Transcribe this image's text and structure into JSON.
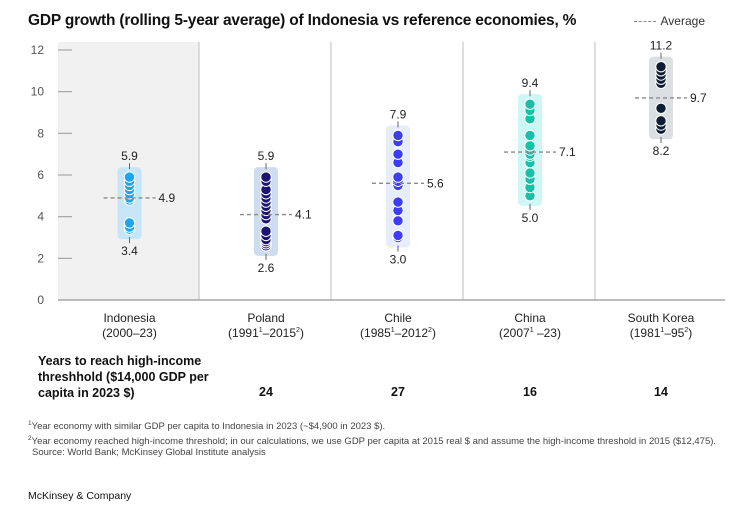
{
  "header": {
    "title": "GDP growth (rolling 5-year average) of Indonesia vs reference economies, %",
    "legend_label": "Average"
  },
  "chart_data": {
    "type": "scatter",
    "title": "GDP growth (rolling 5-year average) of Indonesia vs reference economies, %",
    "xlabel": "",
    "ylabel": "%",
    "ylim": [
      0,
      12
    ],
    "yticks": [
      0,
      2,
      4,
      6,
      8,
      10,
      12
    ],
    "grid": false,
    "legend": {
      "position": "top-right",
      "entries": [
        "Average"
      ]
    },
    "highlighted_category": "Indonesia",
    "categories": [
      {
        "name": "Indonesia",
        "period": "(2000–23)",
        "period_parts": [
          "(2000–23)"
        ],
        "color": "#1aa7ee",
        "band_color": "#c6e6f7",
        "max": 5.9,
        "min": 3.4,
        "average": 4.9,
        "values": [
          5.9,
          5.7,
          5.5,
          5.3,
          5.1,
          4.9,
          4.8,
          3.7,
          3.5,
          3.4
        ]
      },
      {
        "name": "Poland",
        "period": "(1991¹–2015²)",
        "period_parts": [
          "(1991",
          "1",
          "–2015",
          "2",
          ")"
        ],
        "color": "#1a1473",
        "band_color": "#cddcee",
        "max": 5.9,
        "min": 2.6,
        "average": 4.1,
        "values": [
          5.9,
          5.7,
          5.3,
          5.1,
          4.9,
          4.7,
          4.5,
          4.3,
          4.1,
          3.9,
          3.3,
          3.1,
          2.9,
          2.8,
          2.7,
          2.6
        ]
      },
      {
        "name": "Chile",
        "period": "(1985¹–2012²)",
        "period_parts": [
          "(1985",
          "1",
          "–2012",
          "2",
          ")"
        ],
        "color": "#3d3df5",
        "band_color": "#e6edfb",
        "max": 7.9,
        "min": 3.0,
        "average": 5.6,
        "values": [
          7.9,
          7.6,
          7.0,
          6.6,
          5.9,
          5.7,
          5.5,
          4.7,
          4.3,
          3.8,
          3.1,
          3.0
        ]
      },
      {
        "name": "China",
        "period": "(2007¹ –23)",
        "period_parts": [
          "(2007",
          "1",
          " –23)"
        ],
        "color": "#1abfaa",
        "band_color": "#cdf7f6",
        "max": 9.4,
        "min": 5.0,
        "average": 7.1,
        "values": [
          9.4,
          9.1,
          8.7,
          7.9,
          7.4,
          7.2,
          7.0,
          6.9,
          6.6,
          6.1,
          5.8,
          5.4,
          5.0
        ]
      },
      {
        "name": "South Korea",
        "period": "(1981¹–95²)",
        "period_parts": [
          "(1981",
          "1",
          "–95",
          "2",
          ")"
        ],
        "color": "#0d1e33",
        "band_color": "#dcdfe2",
        "max": 11.2,
        "min": 8.2,
        "average": 9.7,
        "values": [
          11.2,
          11.0,
          10.8,
          10.6,
          10.4,
          9.2,
          8.6,
          8.4,
          8.2
        ]
      }
    ]
  },
  "years_table": {
    "label": "Years to reach high-income threshhold ($14,000 GDP per capita in 2023 $)",
    "values": [
      "",
      "24",
      "27",
      "16",
      "14"
    ]
  },
  "footnotes": {
    "note1_marker": "1",
    "note1": "Year economy with similar GDP per capita to Indonesia in 2023 (~$4,900 in 2023 $).",
    "note2_marker": "2",
    "note2": "Year economy reached high-income threshold; in our calculations, we use GDP per capita at 2015 real $ and assume the high-income threshold in 2015 ($12,475).",
    "source": "Source: World Bank; McKinsey Global Institute analysis"
  },
  "brand": "McKinsey & Company",
  "colors": {
    "highlight_panel": "#f1f1f1",
    "divider": "#c8c8c8",
    "axis": "#a6a6a6",
    "average_line": "#8a8a8a"
  }
}
